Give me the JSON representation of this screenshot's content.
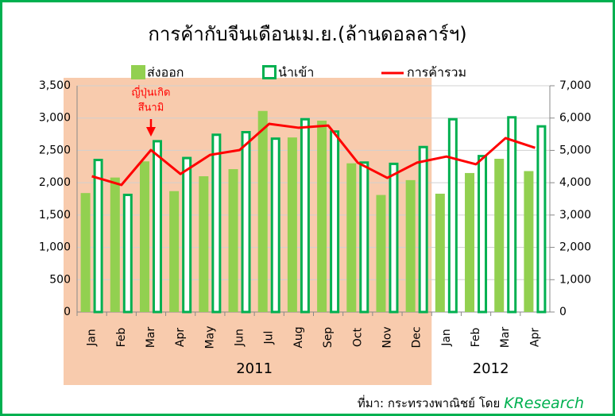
{
  "chart_data": {
    "type": "bar",
    "title": "การค้ากับจีนเดือนเม.ย.(ล้านดอลลาร์ฯ)",
    "categories": [
      "Jan",
      "Feb",
      "Mar",
      "Apr",
      "May",
      "Jun",
      "Jul",
      "Aug",
      "Sep",
      "Oct",
      "Nov",
      "Dec",
      "Jan",
      "Feb",
      "Mar",
      "Apr"
    ],
    "x_groups": [
      "2011",
      "2012"
    ],
    "highlight_color": "#f8cbad",
    "series": [
      {
        "name": "ส่งออก",
        "color": "#92d050",
        "style": "filled",
        "values": [
          1840,
          2080,
          2330,
          1870,
          2100,
          2210,
          3110,
          2700,
          2960,
          2300,
          1810,
          2040,
          1830,
          2150,
          2370,
          2180
        ]
      },
      {
        "name": "นำเข้า",
        "color": "#00b050",
        "style": "outline",
        "values": [
          2370,
          1830,
          2660,
          2400,
          2760,
          2800,
          2700,
          3000,
          2810,
          2330,
          2310,
          2570,
          3000,
          2430,
          3030,
          2890
        ]
      },
      {
        "name": "การค้ารวม",
        "color": "#ff0000",
        "type": "line",
        "axis": "y2",
        "values": [
          4200,
          3930,
          5010,
          4270,
          4860,
          5010,
          5820,
          5700,
          5770,
          4620,
          4150,
          4620,
          4810,
          4570,
          5380,
          5080
        ]
      }
    ],
    "ylim": [
      0,
      3500
    ],
    "yticks": [
      0,
      500,
      {
        "value": 1000,
        "label": "1,000"
      },
      {
        "value": 1500,
        "label": "1,500"
      },
      {
        "value": 2000,
        "label": "2,000"
      },
      {
        "value": 2500,
        "label": "2,500"
      },
      {
        "value": 3000,
        "label": "3,000"
      },
      {
        "value": 3500,
        "label": "3,500"
      }
    ],
    "y2lim": [
      0,
      7000
    ],
    "y2ticks": [
      0,
      {
        "value": 1000,
        "label": "1,000"
      },
      {
        "value": 2000,
        "label": "2,000"
      },
      {
        "value": 3000,
        "label": "3,000"
      },
      {
        "value": 4000,
        "label": "4,000"
      },
      {
        "value": 5000,
        "label": "5,000"
      },
      {
        "value": 6000,
        "label": "6,000"
      },
      {
        "value": 7000,
        "label": "7,000"
      }
    ],
    "grid": true,
    "annotation": {
      "lines": [
        "ญี่ปุ่นเกิด",
        "สึนามิ"
      ],
      "category": "Mar",
      "color": "#ff0000"
    },
    "source": {
      "text": "ที่มา: กระทรวงพาณิชย์ โดย",
      "brand": "KResearch",
      "brand_color": "#00b050"
    }
  }
}
